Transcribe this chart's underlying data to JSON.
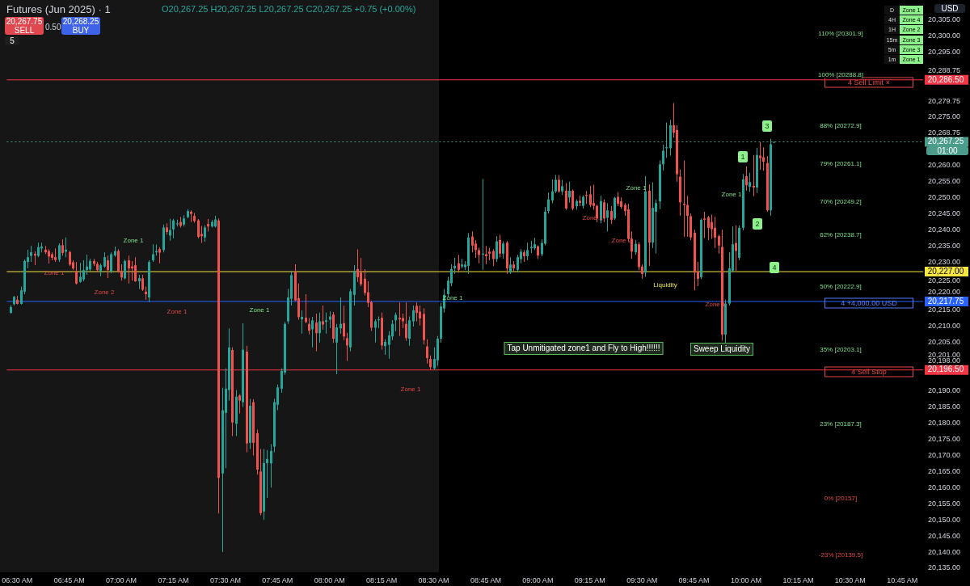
{
  "chart_data": {
    "type": "candlestick",
    "title": "Futures (Jun 2025) · 1",
    "x": [
      6.4667,
      6.4833,
      6.5,
      6.5167,
      6.5333,
      6.55,
      6.5667,
      6.5833,
      6.6,
      6.6167,
      6.6333,
      6.65,
      6.6667,
      6.6833,
      6.7,
      6.7167,
      6.7333,
      6.75,
      6.7667,
      6.7833,
      6.8,
      6.8167,
      6.8333,
      6.85,
      6.8667,
      6.8833,
      6.9,
      6.9167,
      6.9333,
      6.95,
      6.9667,
      6.9833,
      7,
      7.0167,
      7.0333,
      7.05,
      7.0667,
      7.0833,
      7.1,
      7.1167,
      7.1333,
      7.15,
      7.1667,
      7.1833,
      7.2,
      7.2167,
      7.2333,
      7.25,
      7.2667,
      7.2833,
      7.3,
      7.3167,
      7.3333,
      7.35,
      7.3667,
      7.3833,
      7.4,
      7.4167,
      7.4333,
      7.45,
      7.4667,
      7.4833,
      7.5,
      7.5167,
      7.5333,
      7.55,
      7.5667,
      7.5833,
      7.6,
      7.6167,
      7.6333,
      7.65,
      7.6667,
      7.6833,
      7.7,
      7.7167,
      7.7333,
      7.75,
      7.7667,
      7.7833,
      7.8,
      7.8167,
      7.8333,
      7.85,
      7.8667,
      7.8833,
      7.9,
      7.9167,
      7.9333,
      7.95,
      7.9667,
      7.9833,
      8,
      8.0167,
      8.0333,
      8.05,
      8.0667,
      8.0833,
      8.1,
      8.1167,
      8.1333,
      8.15,
      8.1667,
      8.1833,
      8.2,
      8.2167,
      8.2333,
      8.25,
      8.2667,
      8.2833,
      8.3,
      8.3167,
      8.3333,
      8.35,
      8.3667,
      8.3833,
      8.4,
      8.4167,
      8.4333,
      8.45,
      8.4667,
      8.4833,
      8.5,
      8.5167,
      8.5333,
      8.55,
      8.5667,
      8.5833,
      8.6,
      8.6167,
      8.6333,
      8.65,
      8.6667,
      8.6833,
      8.7,
      8.7167,
      8.7333,
      8.75,
      8.7667,
      8.7833,
      8.8,
      8.8167,
      8.8333,
      8.85,
      8.8667,
      8.8833,
      8.9,
      8.9167,
      8.9333,
      8.95,
      8.9667,
      8.9833,
      9,
      9.0167,
      9.0333,
      9.05,
      9.0667,
      9.0833,
      9.1,
      9.1167,
      9.1333,
      9.15,
      9.1667,
      9.1833,
      9.2,
      9.2167,
      9.2333,
      9.25,
      9.2667,
      9.2833,
      9.3,
      9.3167,
      9.3333,
      9.35,
      9.3667,
      9.3833,
      9.4,
      9.4167,
      9.4333,
      9.45,
      9.4667,
      9.4833,
      9.5,
      9.5167,
      9.5333,
      9.55,
      9.5667,
      9.5833,
      9.6,
      9.6167,
      9.6333,
      9.65,
      9.6667,
      9.6833,
      9.7,
      9.7167,
      9.7333,
      9.75,
      9.7667,
      9.7833,
      9.8,
      9.8167,
      9.8333,
      9.85,
      9.8667,
      9.8833,
      9.9,
      9.9167,
      9.9333,
      9.95,
      9.9667,
      9.9833,
      10,
      10.0167,
      10.0333,
      10.05,
      10.0667,
      10.0833,
      10.1,
      10.1167,
      10.1333
    ],
    "ohlc": [
      [
        20214.2,
        20216.6,
        20214,
        20216
      ],
      [
        20216.9,
        20219.5,
        20216.5,
        20219.2
      ],
      [
        20218.3,
        20219.5,
        20216.8,
        20217
      ],
      [
        20217,
        20222.4,
        20216.8,
        20221.2
      ],
      [
        20220.8,
        20230.8,
        20220,
        20230.3
      ],
      [
        20230,
        20233.8,
        20228,
        20231.5
      ],
      [
        20231.9,
        20235,
        20230,
        20233
      ],
      [
        20232.5,
        20233.3,
        20229,
        20232
      ],
      [
        20231.9,
        20236,
        20231.5,
        20234.6
      ],
      [
        20234.2,
        20236,
        20233,
        20234.8
      ],
      [
        20233.8,
        20235,
        20232.5,
        20233
      ],
      [
        20233.4,
        20234,
        20229.5,
        20231.7
      ],
      [
        20232.4,
        20233,
        20230.5,
        20231.3
      ],
      [
        20231.5,
        20234.2,
        20230,
        20230.6
      ],
      [
        20230.7,
        20235.8,
        20230,
        20235.2
      ],
      [
        20235.2,
        20237,
        20232,
        20232.8
      ],
      [
        20233.2,
        20237.6,
        20231.5,
        20233.8
      ],
      [
        20233.1,
        20233.5,
        20228.8,
        20229.2
      ],
      [
        20229.9,
        20230.5,
        20227.5,
        20228
      ],
      [
        20227.1,
        20230,
        20223,
        20223.3
      ],
      [
        20223.8,
        20229.7,
        20223.6,
        20225.4
      ],
      [
        20224.6,
        20230.5,
        20224,
        20227.5
      ],
      [
        20227.5,
        20232.3,
        20226,
        20228.6
      ],
      [
        20227.7,
        20231,
        20227,
        20230.3
      ],
      [
        20230.3,
        20231,
        20228.8,
        20229.4
      ],
      [
        20229.4,
        20230,
        20227,
        20227.5
      ],
      [
        20227.1,
        20229.5,
        20225.6,
        20229
      ],
      [
        20228.6,
        20233,
        20228.2,
        20231.5
      ],
      [
        20230.5,
        20232,
        20225,
        20227.5
      ],
      [
        20227,
        20233,
        20226.5,
        20232.4
      ],
      [
        20232,
        20234.8,
        20231.6,
        20233.4
      ],
      [
        20233.4,
        20234,
        20226.7,
        20227.1
      ],
      [
        20227.1,
        20229.3,
        20224.2,
        20225.2
      ],
      [
        20224.9,
        20230.8,
        20224.6,
        20230.3
      ],
      [
        20230.5,
        20232,
        20223.3,
        20228
      ],
      [
        20228.6,
        20230.3,
        20224.2,
        20228
      ],
      [
        20229,
        20231.5,
        20223.8,
        20224
      ],
      [
        20224,
        20226,
        20221.6,
        20225
      ],
      [
        20224.9,
        20226,
        20221,
        20221.4
      ],
      [
        20220.8,
        20222.4,
        20218.3,
        20220
      ],
      [
        20219,
        20230.5,
        20217.5,
        20230
      ],
      [
        20230.5,
        20235.5,
        20230,
        20232.4
      ],
      [
        20233,
        20235.4,
        20232,
        20233.4
      ],
      [
        20234,
        20234.6,
        20229.6,
        20232.9
      ],
      [
        20233.7,
        20241.6,
        20233,
        20240.7
      ],
      [
        20240.7,
        20242,
        20238.5,
        20239.3
      ],
      [
        20238.2,
        20243.4,
        20236.6,
        20239.9
      ],
      [
        20240.1,
        20243.4,
        20237.3,
        20242.9
      ],
      [
        20241.7,
        20243.1,
        20241,
        20242
      ],
      [
        20242.4,
        20244,
        20240.7,
        20241.2
      ],
      [
        20241.6,
        20244.5,
        20241,
        20243.5
      ],
      [
        20243.9,
        20246.4,
        20243.5,
        20245.8
      ],
      [
        20245.6,
        20246,
        20242.4,
        20244.9
      ],
      [
        20244.3,
        20245.2,
        20242.2,
        20242.7
      ],
      [
        20242.9,
        20243.3,
        20237.3,
        20237.8
      ],
      [
        20238.7,
        20241.2,
        20235.9,
        20238
      ],
      [
        20237.6,
        20241.4,
        20236.3,
        20240.7
      ],
      [
        20241.8,
        20243.3,
        20239.5,
        20241
      ],
      [
        20241,
        20243,
        20240.7,
        20242.4
      ],
      [
        20241,
        20244.3,
        20240.7,
        20243.2
      ],
      [
        20242.9,
        20243.5,
        20152,
        20163
      ],
      [
        20164.4,
        20191,
        20140,
        20184
      ],
      [
        20183.2,
        20197,
        20166,
        20190.7
      ],
      [
        20190.3,
        20209.4,
        20187,
        20203.5
      ],
      [
        20202.7,
        20203.5,
        20176,
        20180.2
      ],
      [
        20179.8,
        20190.3,
        20176,
        20188.2
      ],
      [
        20188.6,
        20189,
        20183,
        20187
      ],
      [
        20186.5,
        20211,
        20185,
        20202.8
      ],
      [
        20202.2,
        20204,
        20171,
        20173.7
      ],
      [
        20173.9,
        20187.5,
        20172,
        20185.4
      ],
      [
        20186.5,
        20187.4,
        20170,
        20173.9
      ],
      [
        20176.9,
        20178,
        20164,
        20165.6
      ],
      [
        20165,
        20172,
        20151.4,
        20152.1
      ],
      [
        20152.6,
        20172,
        20150,
        20167.6
      ],
      [
        20167.6,
        20171.7,
        20156.8,
        20168.9
      ],
      [
        20167.5,
        20173.5,
        20160,
        20171.4
      ],
      [
        20172.7,
        20187.5,
        20171,
        20186.5
      ],
      [
        20185.7,
        20192,
        20184,
        20191.1
      ],
      [
        20190.7,
        20197,
        20189.5,
        20196.2
      ],
      [
        20195.7,
        20211.4,
        20195,
        20210.8
      ],
      [
        20211.6,
        20221.6,
        20210.8,
        20219
      ],
      [
        20218.6,
        20227.2,
        20216.5,
        20225.9
      ],
      [
        20227,
        20229.3,
        20217.8,
        20218.1
      ],
      [
        20218.8,
        20223.3,
        20212.1,
        20212.9
      ],
      [
        20212.2,
        20215,
        20207.8,
        20213
      ],
      [
        20212.7,
        20220,
        20211,
        20211.4
      ],
      [
        20210.8,
        20212.6,
        20207.5,
        20208.7
      ],
      [
        20209.1,
        20213,
        20203.5,
        20211.9
      ],
      [
        20211.2,
        20214,
        20202.3,
        20207.9
      ],
      [
        20207.9,
        20214.3,
        20205,
        20211.6
      ],
      [
        20211.6,
        20216.5,
        20209,
        20210.6
      ],
      [
        20211.4,
        20214.3,
        20207.8,
        20211.9
      ],
      [
        20212.1,
        20214.7,
        20209.5,
        20213.1
      ],
      [
        20213.7,
        20214.5,
        20204.9,
        20206.2
      ],
      [
        20205,
        20210.8,
        20195.2,
        20209.7
      ],
      [
        20209.4,
        20219,
        20207.8,
        20210.8
      ],
      [
        20211,
        20216.4,
        20205.8,
        20206.9
      ],
      [
        20206.4,
        20208,
        20199.3,
        20204.1
      ],
      [
        20203.5,
        20221.6,
        20202.3,
        20220.9
      ],
      [
        20219.8,
        20229,
        20216.5,
        20227.2
      ],
      [
        20227.8,
        20233.9,
        20223.8,
        20225.3
      ],
      [
        20226.7,
        20231.2,
        20222.5,
        20223.1
      ],
      [
        20224.8,
        20227.8,
        20219.6,
        20220.4
      ],
      [
        20220.6,
        20224,
        20216,
        20217.3
      ],
      [
        20217.5,
        20218,
        20208.6,
        20209.6
      ],
      [
        20209.6,
        20212.2,
        20205,
        20211.6
      ],
      [
        20211.9,
        20213.1,
        20209.5,
        20212.2
      ],
      [
        20212.7,
        20214.3,
        20202.8,
        20204.1
      ],
      [
        20203.9,
        20206,
        20201.2,
        20205.2
      ],
      [
        20204.3,
        20208.5,
        20200,
        20207.2
      ],
      [
        20206.9,
        20212,
        20205.8,
        20210.8
      ],
      [
        20211.9,
        20214.3,
        20208.5,
        20213.6
      ],
      [
        20212.7,
        20217.4,
        20207,
        20212.2
      ],
      [
        20212.6,
        20214,
        20209.5,
        20211.6
      ],
      [
        20210.8,
        20217.4,
        20205.6,
        20206.4
      ],
      [
        20206.2,
        20213.1,
        20204,
        20211.9
      ],
      [
        20211.6,
        20216.5,
        20210,
        20215
      ],
      [
        20216.4,
        20217.4,
        20211.6,
        20214.2
      ],
      [
        20214.6,
        20216.5,
        20210.3,
        20212.5
      ],
      [
        20213.9,
        20215.6,
        20204.4,
        20205.8
      ],
      [
        20203.8,
        20206,
        20198.5,
        20200.2
      ],
      [
        20199.9,
        20201,
        20196.6,
        20197.4
      ],
      [
        20197,
        20203.5,
        20196.6,
        20199.9
      ],
      [
        20199.5,
        20207,
        20197.8,
        20206.2
      ],
      [
        20206.2,
        20217.3,
        20205,
        20216.2
      ],
      [
        20215.6,
        20221.6,
        20214.3,
        20219.8
      ],
      [
        20220,
        20225.4,
        20219,
        20224.2
      ],
      [
        20223.4,
        20229.3,
        20222.5,
        20227.8
      ],
      [
        20228,
        20231.3,
        20226.3,
        20228.8
      ],
      [
        20229.6,
        20232.2,
        20226.7,
        20227.6
      ],
      [
        20228.6,
        20231,
        20228,
        20229.2
      ],
      [
        20228.4,
        20230.3,
        20227.5,
        20229.2
      ],
      [
        20228.8,
        20239,
        20226.3,
        20237.6
      ],
      [
        20237.9,
        20239.5,
        20233,
        20235.1
      ],
      [
        20235.7,
        20236.8,
        20231.3,
        20233.7
      ],
      [
        20233.7,
        20234.4,
        20229.6,
        20232.2
      ],
      [
        20232.3,
        20255.7,
        20227.6,
        20232.6
      ],
      [
        20232.4,
        20235,
        20229.3,
        20231.8
      ],
      [
        20233.2,
        20234.4,
        20230.5,
        20232.6
      ],
      [
        20233.4,
        20234,
        20228.7,
        20230.9
      ],
      [
        20230.9,
        20238,
        20230,
        20236.4
      ],
      [
        20236.8,
        20238.5,
        20231.4,
        20232.6
      ],
      [
        20232.6,
        20236.4,
        20231,
        20235.7
      ],
      [
        20236,
        20236.5,
        20226.3,
        20228
      ],
      [
        20226.7,
        20231.5,
        20226.3,
        20229.2
      ],
      [
        20229.2,
        20230.3,
        20227.1,
        20228
      ],
      [
        20227.6,
        20232.2,
        20226.7,
        20231.5
      ],
      [
        20230.9,
        20234,
        20229.6,
        20233.2
      ],
      [
        20233,
        20233.7,
        20230,
        20231.8
      ],
      [
        20231.8,
        20236,
        20230.5,
        20233.7
      ],
      [
        20234.3,
        20236.6,
        20232.8,
        20234.7
      ],
      [
        20234.3,
        20237.5,
        20233.7,
        20235.5
      ],
      [
        20234.9,
        20235.2,
        20230.9,
        20232
      ],
      [
        20232.4,
        20237,
        20231.8,
        20235.9
      ],
      [
        20235.7,
        20247,
        20235.2,
        20245.6
      ],
      [
        20245.8,
        20251.5,
        20245,
        20249.4
      ],
      [
        20249.1,
        20255.6,
        20248.2,
        20251.9
      ],
      [
        20251.9,
        20257,
        20251.4,
        20255.5
      ],
      [
        20255.5,
        20257,
        20251.5,
        20251.9
      ],
      [
        20251.9,
        20255.5,
        20250.8,
        20253.5
      ],
      [
        20252.1,
        20254.5,
        20246.2,
        20246.6
      ],
      [
        20250,
        20254.9,
        20248.4,
        20252.1
      ],
      [
        20252.1,
        20252.5,
        20246,
        20246.6
      ],
      [
        20247.3,
        20249.4,
        20246.2,
        20248.9
      ],
      [
        20249,
        20250.6,
        20247.3,
        20248.3
      ],
      [
        20247.4,
        20250.7,
        20246.6,
        20250.2
      ],
      [
        20250.8,
        20252,
        20248,
        20250.5
      ],
      [
        20251,
        20253.6,
        20247,
        20247.7
      ],
      [
        20248.3,
        20254,
        20246.2,
        20247.4
      ],
      [
        20247.4,
        20247.8,
        20242.4,
        20243.5
      ],
      [
        20242.9,
        20250.5,
        20242,
        20248.9
      ],
      [
        20248.5,
        20249.4,
        20242.4,
        20243.5
      ],
      [
        20243.7,
        20248.3,
        20239.5,
        20246
      ],
      [
        20245.8,
        20247.3,
        20241.8,
        20243.1
      ],
      [
        20243.5,
        20250.2,
        20243,
        20249.9
      ],
      [
        20250.2,
        20251.7,
        20247.3,
        20248.1
      ],
      [
        20248.8,
        20250,
        20246.5,
        20247.1
      ],
      [
        20247.7,
        20248.3,
        20244.3,
        20245.8
      ],
      [
        20246.3,
        20248,
        20236.4,
        20237.2
      ],
      [
        20237.2,
        20239.5,
        20231,
        20233.2
      ],
      [
        20233,
        20236.8,
        20232.2,
        20235.6
      ],
      [
        20235.5,
        20236.2,
        20227.5,
        20228.4
      ],
      [
        20228.6,
        20229.2,
        20224.8,
        20226.3
      ],
      [
        20226.7,
        20256.6,
        20225.4,
        20251.9
      ],
      [
        20252.1,
        20254.1,
        20228.8,
        20236
      ],
      [
        20236,
        20254.7,
        20234.3,
        20246.8
      ],
      [
        20245.6,
        20249.4,
        20232.6,
        20248.3
      ],
      [
        20248.8,
        20261.5,
        20246.4,
        20260.3
      ],
      [
        20260.3,
        20266.4,
        20258.3,
        20264.5
      ],
      [
        20265.3,
        20273.3,
        20262.3,
        20265.6
      ],
      [
        20265.3,
        20274.1,
        20263,
        20272.4
      ],
      [
        20272.4,
        20279.3,
        20268.6,
        20270.1
      ],
      [
        20270.9,
        20272.4,
        20254.9,
        20257.2
      ],
      [
        20256.5,
        20258.7,
        20244.3,
        20248.5
      ],
      [
        20248.1,
        20261.5,
        20237.8,
        20247.7
      ],
      [
        20247.7,
        20250.5,
        20237.8,
        20244.3
      ],
      [
        20244.2,
        20245,
        20236.8,
        20237.6
      ],
      [
        20239.1,
        20240,
        20221.2,
        20226.7
      ],
      [
        20227,
        20230,
        20222.5,
        20224.8
      ],
      [
        20225.3,
        20243.5,
        20224.7,
        20243.1
      ],
      [
        20243.5,
        20245.6,
        20237.4,
        20243.1
      ],
      [
        20243.9,
        20244.3,
        20236.8,
        20240.6
      ],
      [
        20242.4,
        20244.7,
        20237.2,
        20240.2
      ],
      [
        20240.6,
        20244,
        20234.3,
        20237.6
      ],
      [
        20238,
        20238.5,
        20232.6,
        20235.1
      ],
      [
        20234.7,
        20240,
        20205.6,
        20207.5
      ],
      [
        20207.5,
        20218.3,
        20204.9,
        20217.1
      ],
      [
        20217.1,
        20233,
        20216.5,
        20228
      ],
      [
        20227.3,
        20241,
        20226.7,
        20235.5
      ],
      [
        20235.9,
        20241.4,
        20227.3,
        20233.4
      ],
      [
        20231.3,
        20241.4,
        20230.5,
        20240.6
      ],
      [
        20240.6,
        20257.3,
        20239.8,
        20255.6
      ],
      [
        20256.6,
        20259.7,
        20252.1,
        20253.8
      ],
      [
        20253.3,
        20257.7,
        20251.7,
        20254.8
      ],
      [
        20253.6,
        20263.2,
        20250.4,
        20253.1
      ],
      [
        20253.1,
        20265.4,
        20251.4,
        20263.2
      ],
      [
        20263,
        20267.2,
        20258.6,
        20262.2
      ],
      [
        20262.5,
        20265.6,
        20258.3,
        20261.1
      ],
      [
        20260.7,
        20262.8,
        20245.6,
        20246
      ],
      [
        20246,
        20268.2,
        20244.3,
        20266.5
      ],
      [
        20267.25,
        20267.25,
        20267.25,
        20267.25
      ]
    ],
    "xlim": [
      6.45,
      10.85
    ],
    "xticks": [
      {
        "value": 6.5,
        "label": "06:30 AM"
      },
      {
        "value": 6.75,
        "label": "06:45 AM"
      },
      {
        "value": 7,
        "label": "07:00 AM"
      },
      {
        "value": 7.25,
        "label": "07:15 AM"
      },
      {
        "value": 7.5,
        "label": "07:30 AM"
      },
      {
        "value": 7.75,
        "label": "07:45 AM"
      },
      {
        "value": 8,
        "label": "08:00 AM"
      },
      {
        "value": 8.25,
        "label": "08:15 AM"
      },
      {
        "value": 8.5,
        "label": "08:30 AM"
      },
      {
        "value": 8.75,
        "label": "08:45 AM"
      },
      {
        "value": 9,
        "label": "09:00 AM"
      },
      {
        "value": 9.25,
        "label": "09:15 AM"
      },
      {
        "value": 9.5,
        "label": "09:30 AM"
      },
      {
        "value": 9.75,
        "label": "09:45 AM"
      },
      {
        "value": 10,
        "label": "10:00 AM"
      },
      {
        "value": 10.25,
        "label": "10:15 AM"
      },
      {
        "value": 10.5,
        "label": "10:30 AM"
      },
      {
        "value": 10.75,
        "label": "10:45 AM"
      }
    ],
    "ylim": [
      20135,
      20305
    ],
    "yticks": [
      {
        "value": 20305,
        "label": "20,305.00"
      },
      {
        "value": 20300,
        "label": "20,300.00"
      },
      {
        "value": 20295,
        "label": "20,295.00"
      },
      {
        "value": 20288.75,
        "label": "20,288.75"
      },
      {
        "value": 20279.75,
        "label": "20,279.75"
      },
      {
        "value": 20275,
        "label": "20,275.00"
      },
      {
        "value": 20268.75,
        "label": "20,268.75"
      },
      {
        "value": 20260,
        "label": "20,260.00"
      },
      {
        "value": 20255,
        "label": "20,255.00"
      },
      {
        "value": 20250,
        "label": "20,250.00"
      },
      {
        "value": 20245,
        "label": "20,245.00"
      },
      {
        "value": 20240,
        "label": "20,240.00"
      },
      {
        "value": 20235,
        "label": "20,235.00"
      },
      {
        "value": 20230,
        "label": "20,230.00"
      },
      {
        "value": 20225,
        "label": "20,225.00"
      },
      {
        "value": 20220,
        "label": "20,220.00"
      },
      {
        "value": 20215,
        "label": "20,215.00"
      },
      {
        "value": 20210,
        "label": "20,210.00"
      },
      {
        "value": 20205,
        "label": "20,205.00"
      },
      {
        "value": 20201,
        "label": "20,201.00"
      },
      {
        "value": 20198,
        "label": "20,198.00"
      },
      {
        "value": 20190,
        "label": "20,190.00"
      },
      {
        "value": 20185,
        "label": "20,185.00"
      },
      {
        "value": 20180,
        "label": "20,180.00"
      },
      {
        "value": 20175,
        "label": "20,175.00"
      },
      {
        "value": 20170,
        "label": "20,170.00"
      },
      {
        "value": 20165,
        "label": "20,165.00"
      },
      {
        "value": 20160,
        "label": "20,160.00"
      },
      {
        "value": 20155,
        "label": "20,155.00"
      },
      {
        "value": 20150,
        "label": "20,150.00"
      },
      {
        "value": 20145,
        "label": "20,145.00"
      },
      {
        "value": 20140,
        "label": "20,140.00"
      },
      {
        "value": 20135,
        "label": "20,135.00"
      }
    ],
    "ref_lines": [
      {
        "axis": "y",
        "value": 20286.5,
        "label": "20,286.50",
        "color": "#f23645"
      },
      {
        "axis": "y",
        "value": 20267.25,
        "label": "20,267.25",
        "color": "#4c9c8c",
        "line_style": "dotted"
      },
      {
        "axis": "y",
        "value": 20227,
        "label": "20,227.00",
        "color": "#f5e642"
      },
      {
        "axis": "y",
        "value": 20217.75,
        "label": "20,217.75",
        "color": "#2962ff"
      },
      {
        "axis": "y",
        "value": 20196.5,
        "label": "20,196.50",
        "color": "#f23645"
      }
    ],
    "annotations": [
      "O20,267.25 H20,267.25 L20,267.25 C20,267.25 +0.75 (+0.00%)",
      "20,267.75 SELL",
      "0.50",
      "20,268.25 BUY",
      "5",
      "D Zone 1",
      "4H Zone 4",
      "1H Zone 2",
      "15m Zone 3",
      "5m Zone 3",
      "1m Zone 1",
      "USD",
      "01:00",
      "4  Sell Limit  ×",
      "4  +4,000.00 USD",
      "4  Sell Stop",
      "Zone 1",
      "Zone 1",
      "Zone 2",
      "Zone 1",
      "Zone 1",
      "Zone 1",
      "Zone 1",
      "Zone 1",
      "Zone 2",
      "Zone 1",
      "Liquidity",
      "Zone 1",
      "Zone 1",
      "Tap Unmitigated zone1 and Fly to High!!!!!!",
      "Sweep Liquidity",
      "1",
      "2",
      "3",
      "4",
      "110% [20301.9]",
      "100% [20288.8]",
      "88% [20272.9]",
      "79% [20261.1]",
      "70% [20249.2]",
      "62% [20238.7]",
      "50% [20222.9]",
      "35% [20203.1]",
      "23% [20187.3]",
      "0% [20157]",
      "-23% [20139.5]"
    ]
  }
}
